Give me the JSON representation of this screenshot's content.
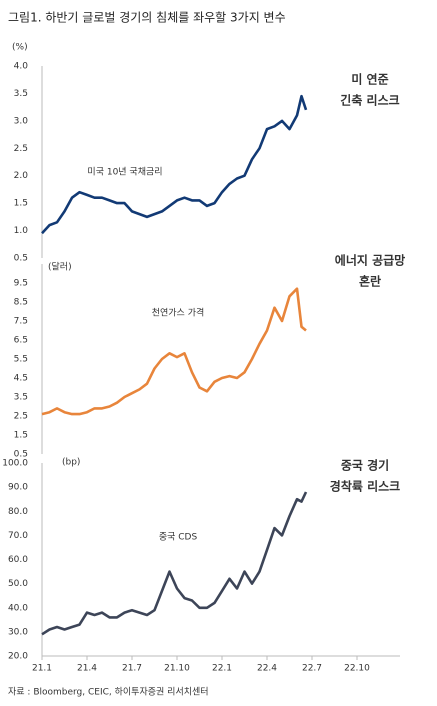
{
  "title": "그림1. 하반기 글로벌 경기의 침체를 좌우할 3가지 변수",
  "source": "자료 : Bloomberg, CEIC, 하이투자증권 리서치센터",
  "chart_data": [
    {
      "type": "line",
      "y_unit": "(%)",
      "annotation": "미국 10년 국채금리",
      "side_note": [
        "미 연준",
        "긴축 리스크"
      ],
      "xlim": [
        0,
        23.5
      ],
      "ylim": [
        0.5,
        4.0
      ],
      "yticks": [
        {
          "value": 0.5,
          "label": "0.5"
        },
        {
          "value": 1,
          "label": "1.0"
        },
        {
          "value": 1.5,
          "label": "1.5"
        },
        {
          "value": 2,
          "label": "2.0"
        },
        {
          "value": 2.5,
          "label": "2.5"
        },
        {
          "value": 3,
          "label": "3.0"
        },
        {
          "value": 3.5,
          "label": "3.5"
        },
        {
          "value": 4,
          "label": "4.0"
        }
      ],
      "series": [
        {
          "color": "#123a75",
          "x": [
            0,
            0.5,
            1,
            1.5,
            2,
            2.5,
            3,
            3.5,
            4,
            4.5,
            5,
            5.5,
            6,
            6.5,
            7,
            7.5,
            8,
            8.5,
            9,
            9.5,
            10,
            10.5,
            11,
            11.5,
            12,
            12.5,
            13,
            13.5,
            14,
            14.5,
            15,
            15.5,
            16,
            16.5,
            17,
            17.3,
            17.6
          ],
          "values": [
            0.95,
            1.1,
            1.15,
            1.35,
            1.6,
            1.7,
            1.65,
            1.6,
            1.6,
            1.55,
            1.5,
            1.5,
            1.35,
            1.3,
            1.25,
            1.3,
            1.35,
            1.45,
            1.55,
            1.6,
            1.55,
            1.55,
            1.45,
            1.5,
            1.7,
            1.85,
            1.95,
            2.0,
            2.3,
            2.5,
            2.85,
            2.9,
            3.0,
            2.85,
            3.1,
            3.45,
            3.2
          ]
        }
      ]
    },
    {
      "type": "line",
      "y_unit": "(달러)",
      "annotation": "천연가스 가격",
      "side_note": [
        "에너지 공급망",
        "혼란"
      ],
      "xlim": [
        0,
        23.5
      ],
      "ylim": [
        0.5,
        10.5
      ],
      "yticks": [
        0.5,
        1.5,
        2.5,
        3.5,
        4.5,
        5.5,
        6.5,
        7.5,
        8.5,
        9.5
      ],
      "series": [
        {
          "color": "#e8853b",
          "x": [
            0,
            0.5,
            1,
            1.5,
            2,
            2.5,
            3,
            3.5,
            4,
            4.5,
            5,
            5.5,
            6,
            6.5,
            7,
            7.5,
            8,
            8.5,
            9,
            9.5,
            10,
            10.5,
            11,
            11.5,
            12,
            12.5,
            13,
            13.5,
            14,
            14.5,
            15,
            15.5,
            16,
            16.5,
            17,
            17.3,
            17.6
          ],
          "values": [
            2.6,
            2.7,
            2.9,
            2.7,
            2.6,
            2.6,
            2.7,
            2.9,
            2.9,
            3.0,
            3.2,
            3.5,
            3.7,
            3.9,
            4.2,
            5.0,
            5.5,
            5.8,
            5.6,
            5.8,
            4.8,
            4.0,
            3.8,
            4.3,
            4.5,
            4.6,
            4.5,
            4.8,
            5.5,
            6.3,
            7.0,
            8.2,
            7.5,
            8.8,
            9.2,
            7.2,
            7.0
          ]
        }
      ]
    },
    {
      "type": "line",
      "y_unit": "(bp)",
      "annotation": "중국 CDS",
      "side_note": [
        "중국 경기",
        "경착륙 리스크"
      ],
      "xlim": [
        0,
        23.5
      ],
      "ylim": [
        20,
        100
      ],
      "yticks": [
        {
          "value": 20,
          "label": "20.0"
        },
        {
          "value": 30,
          "label": "30.0"
        },
        {
          "value": 40,
          "label": "40.0"
        },
        {
          "value": 50,
          "label": "50.0"
        },
        {
          "value": 60,
          "label": "60.0"
        },
        {
          "value": 70,
          "label": "70.0"
        },
        {
          "value": 80,
          "label": "80.0"
        },
        {
          "value": 90,
          "label": "90.0"
        },
        {
          "value": 100,
          "label": "100.0"
        }
      ],
      "xticks": [
        {
          "value": 0,
          "label": "21.1"
        },
        {
          "value": 3,
          "label": "21.4"
        },
        {
          "value": 6,
          "label": "21.7"
        },
        {
          "value": 9,
          "label": "21.10"
        },
        {
          "value": 12,
          "label": "22.1"
        },
        {
          "value": 15,
          "label": "22.4"
        },
        {
          "value": 18,
          "label": "22.7"
        },
        {
          "value": 21,
          "label": "22.10"
        }
      ],
      "series": [
        {
          "color": "#3d4558",
          "x": [
            0,
            0.5,
            1,
            1.5,
            2,
            2.5,
            3,
            3.5,
            4,
            4.5,
            5,
            5.5,
            6,
            6.5,
            7,
            7.5,
            8,
            8.5,
            9,
            9.5,
            10,
            10.5,
            11,
            11.5,
            12,
            12.5,
            13,
            13.5,
            14,
            14.5,
            15,
            15.5,
            16,
            16.5,
            17,
            17.3,
            17.6
          ],
          "values": [
            29,
            31,
            32,
            31,
            32,
            33,
            38,
            37,
            38,
            36,
            36,
            38,
            39,
            38,
            37,
            39,
            47,
            55,
            48,
            44,
            43,
            40,
            40,
            42,
            47,
            52,
            48,
            55,
            50,
            55,
            64,
            73,
            70,
            78,
            85,
            84,
            88
          ]
        }
      ]
    }
  ]
}
